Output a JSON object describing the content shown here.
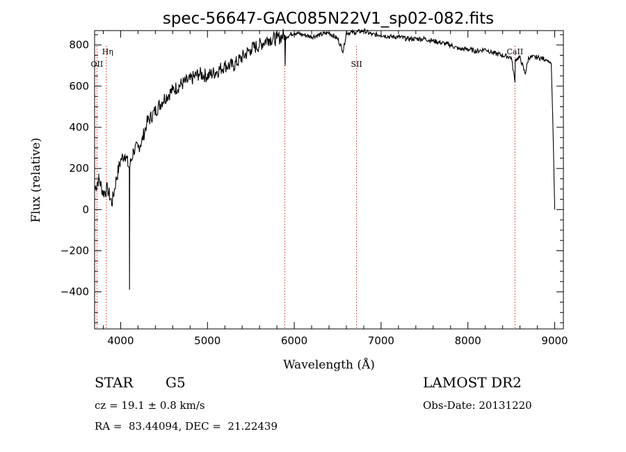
{
  "chart_data": {
    "type": "line",
    "title": "spec-56647-GAC085N22V1_sp02-082.fits",
    "xlabel": "Wavelength (Å)",
    "ylabel": "Flux (relative)",
    "xlim": [
      3700,
      9100
    ],
    "ylim": [
      -580,
      870
    ],
    "x_ticks": [
      4000,
      5000,
      6000,
      7000,
      8000,
      9000
    ],
    "y_ticks": [
      -400,
      -200,
      0,
      200,
      400,
      600,
      800
    ],
    "grid": false,
    "series": [
      {
        "x": [
          3700,
          3750,
          3800,
          3850,
          3900,
          3950,
          4000,
          4050,
          4100,
          4102,
          4105,
          4150,
          4200,
          4250,
          4300,
          4400,
          4500,
          4600,
          4700,
          4800,
          4900,
          5000,
          5100,
          5200,
          5300,
          5400,
          5500,
          5600,
          5700,
          5800,
          5890,
          5895,
          5900,
          6000,
          6100,
          6200,
          6300,
          6400,
          6500,
          6563,
          6600,
          6700,
          6800,
          6900,
          7000,
          7100,
          7200,
          7300,
          7400,
          7500,
          7600,
          7700,
          7800,
          7900,
          8000,
          8100,
          8200,
          8300,
          8400,
          8500,
          8542,
          8545,
          8600,
          8660,
          8700,
          8800,
          8900,
          8960,
          8980,
          9000
        ],
        "y": [
          100,
          150,
          80,
          100,
          30,
          150,
          240,
          270,
          200,
          -390,
          210,
          290,
          300,
          340,
          420,
          480,
          540,
          580,
          610,
          630,
          660,
          650,
          670,
          700,
          700,
          740,
          780,
          800,
          830,
          830,
          850,
          700,
          840,
          860,
          850,
          840,
          850,
          860,
          830,
          770,
          860,
          860,
          870,
          850,
          850,
          840,
          840,
          830,
          830,
          830,
          820,
          810,
          800,
          780,
          780,
          770,
          780,
          760,
          750,
          740,
          620,
          730,
          740,
          660,
          740,
          740,
          730,
          710,
          400,
          0
        ]
      }
    ],
    "annotations": [
      {
        "label": "Hη",
        "x": 3835
      },
      {
        "label": "OII",
        "x": 3727
      },
      {
        "label": "SII",
        "x": 6717
      },
      {
        "label": "CaII",
        "x": 8542
      }
    ],
    "marker_lines": [
      3727,
      3835,
      5890,
      6717,
      8542
    ]
  },
  "info": {
    "obj_type": "STAR",
    "obj_class": "G5",
    "survey": "LAMOST DR2",
    "cz": "cz = 19.1 ± 0.8 km/s",
    "obs_date": "Obs-Date: 20131220",
    "coords": "RA =  83.44094, DEC =  21.22439"
  }
}
